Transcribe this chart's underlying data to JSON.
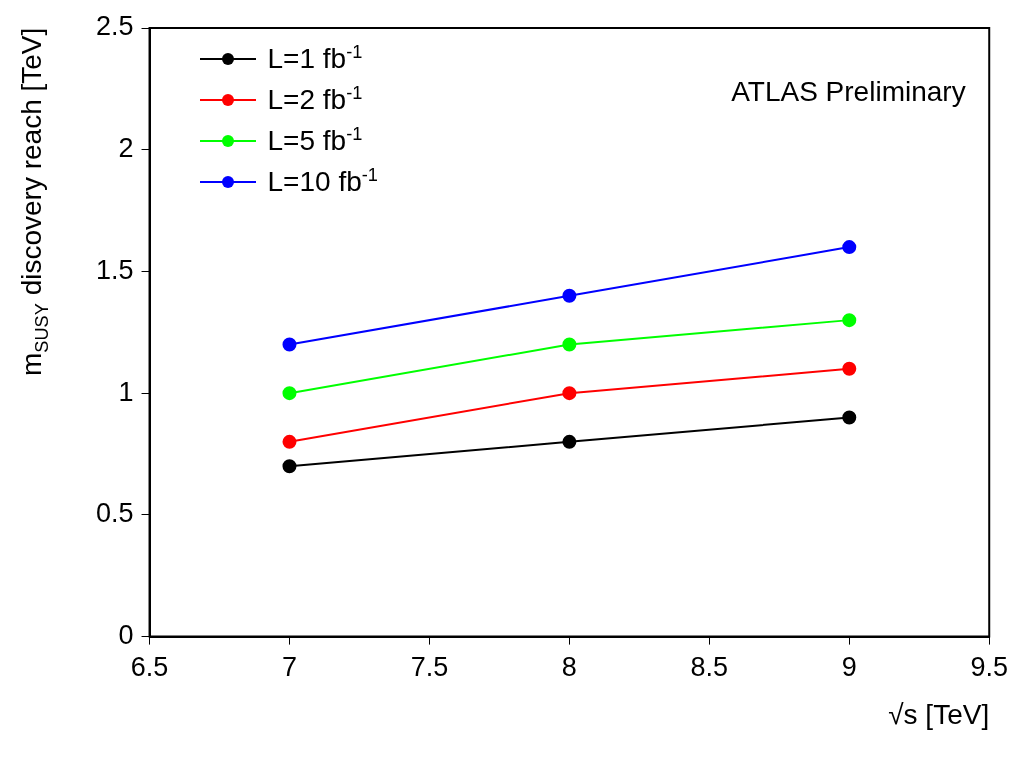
{
  "chart_data": {
    "type": "line",
    "xlabel": "√s [TeV]",
    "ylabel": "m$_{SUSY}$ discovery reach [TeV]",
    "x": [
      7,
      8,
      9
    ],
    "series": [
      {
        "name": "L=1 fb$^{-1}$",
        "color": "#000000",
        "values": [
          0.7,
          0.8,
          0.9
        ]
      },
      {
        "name": "L=2 fb$^{-1}$",
        "color": "#ff0000",
        "values": [
          0.8,
          1.0,
          1.1
        ]
      },
      {
        "name": "L=5 fb$^{-1}$",
        "color": "#00ff00",
        "values": [
          1.0,
          1.2,
          1.3
        ]
      },
      {
        "name": "L=10 fb$^{-1}$",
        "color": "#0000ff",
        "values": [
          1.2,
          1.4,
          1.6
        ]
      }
    ],
    "xlim": [
      6.5,
      9.5
    ],
    "xticks": [
      6.5,
      7,
      7.5,
      8,
      8.5,
      9,
      9.5
    ],
    "ylim": [
      0,
      2.5
    ],
    "yticks": [
      0,
      0.5,
      1,
      1.5,
      2,
      2.5
    ],
    "annotations": [
      "ATLAS Preliminary"
    ],
    "grid": false,
    "legend": "top left",
    "marker": "circle",
    "line_style": "solid"
  }
}
